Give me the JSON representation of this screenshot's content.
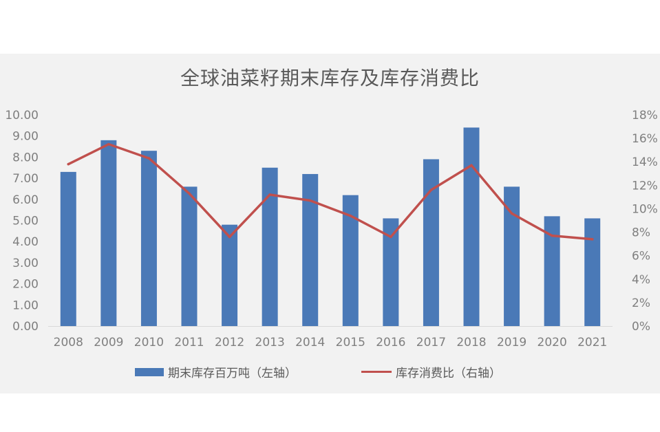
{
  "chart_data": {
    "type": "bar",
    "title": "全球油菜籽期末库存及库存消费比",
    "categories": [
      "2008",
      "2009",
      "2010",
      "2011",
      "2012",
      "2013",
      "2014",
      "2015",
      "2016",
      "2017",
      "2018",
      "2019",
      "2020",
      "2021"
    ],
    "series": [
      {
        "name": "期末库存百万吨（左轴）",
        "type": "bar",
        "axis": "left",
        "color": "#4a79b7",
        "values": [
          7.3,
          8.8,
          8.3,
          6.6,
          4.8,
          7.5,
          7.2,
          6.2,
          5.1,
          7.9,
          9.4,
          6.6,
          5.2,
          5.1
        ]
      },
      {
        "name": "库存消费比（右轴）",
        "type": "line",
        "axis": "right",
        "color": "#c0504d",
        "values": [
          13.8,
          15.5,
          14.3,
          11.3,
          7.6,
          11.2,
          10.7,
          9.4,
          7.6,
          11.6,
          13.7,
          9.6,
          7.7,
          7.4
        ]
      }
    ],
    "y_left": {
      "ylim": [
        0,
        10
      ],
      "ticks": [
        "0.00",
        "1.00",
        "2.00",
        "3.00",
        "4.00",
        "5.00",
        "6.00",
        "7.00",
        "8.00",
        "9.00",
        "10.00"
      ]
    },
    "y_right": {
      "ylim": [
        0,
        18
      ],
      "ticks": [
        "0%",
        "2%",
        "4%",
        "6%",
        "8%",
        "10%",
        "12%",
        "14%",
        "16%",
        "18%"
      ]
    },
    "grid": false,
    "legend": "bottom"
  }
}
